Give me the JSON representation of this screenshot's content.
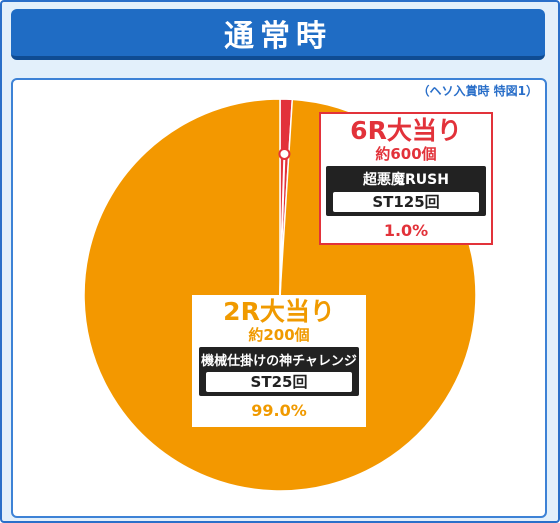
{
  "header": {
    "title": "通常時"
  },
  "note": "（ヘソ入賞時 特図1）",
  "colors": {
    "main_slice": "#f39800",
    "minor_slice": "#e2323a",
    "header": "#1f6cc4",
    "frame_bg": "#e3f0fb"
  },
  "chart_data": {
    "type": "pie",
    "title": "通常時",
    "subtitle": "（ヘソ入賞時 特図1）",
    "slices": [
      {
        "label": "6R大当り",
        "value": 1.0,
        "percent_label": "1.0%",
        "payout": "約600個",
        "mode": "超悪魔RUSH",
        "st": "ST125回",
        "color": "#e2323a"
      },
      {
        "label": "2R大当り",
        "value": 99.0,
        "percent_label": "99.0%",
        "payout": "約200個",
        "mode": "機械仕掛けの神チャレンジ",
        "st": "ST25回",
        "color": "#f39800"
      }
    ]
  }
}
